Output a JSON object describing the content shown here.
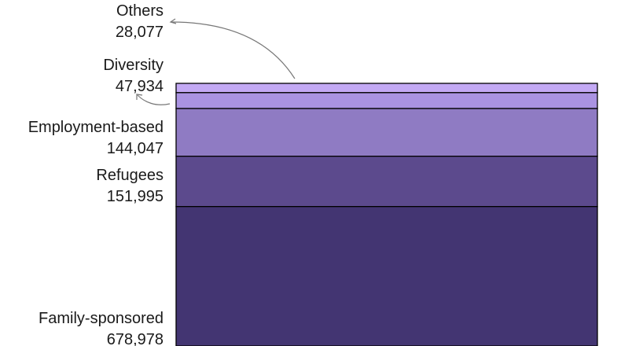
{
  "chart_data": {
    "type": "bar",
    "stacked": true,
    "title": "",
    "xlabel": "",
    "ylabel": "",
    "grid": false,
    "categories": [
      "Others",
      "Diversity",
      "Employment-based",
      "Refugees",
      "Family-sponsored"
    ],
    "values": [
      28077,
      47934,
      144047,
      151995,
      678978
    ],
    "value_labels": [
      "28,077",
      "47,934",
      "144,047",
      "151,995",
      "678,978"
    ],
    "colors": [
      "#c3a9f4",
      "#aa93e2",
      "#8f7bc3",
      "#5c4a8d",
      "#433572"
    ]
  }
}
